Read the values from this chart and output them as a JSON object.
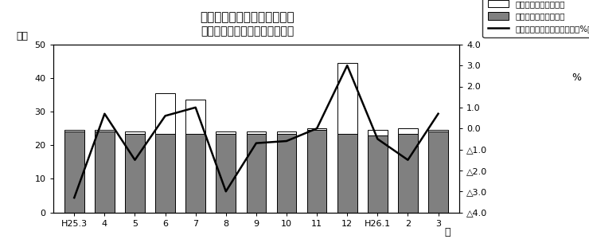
{
  "title_line1": "第１図　現金給与総額の推移",
  "title_line2": "（規模５人以上　調査産業計）",
  "xlabel": "月",
  "ylabel_left": "万円",
  "ylabel_right": "%",
  "categories": [
    "H25.3",
    "4",
    "5",
    "6",
    "7",
    "8",
    "9",
    "10",
    "11",
    "12",
    "H26.1",
    "2",
    "3"
  ],
  "regular_pay": [
    24.0,
    24.0,
    23.5,
    23.5,
    23.5,
    23.5,
    23.5,
    23.5,
    24.5,
    23.5,
    23.0,
    23.5,
    24.0
  ],
  "special_pay": [
    0.5,
    0.5,
    0.5,
    12.0,
    10.0,
    0.5,
    0.5,
    0.5,
    0.5,
    21.0,
    1.5,
    1.5,
    0.5
  ],
  "yoy_change": [
    -3.3,
    0.7,
    -1.5,
    0.6,
    1.0,
    -3.0,
    -0.7,
    -0.6,
    0.0,
    3.0,
    -0.5,
    -1.5,
    0.7
  ],
  "ylim_left": [
    0,
    50
  ],
  "ylim_right": [
    -4.0,
    4.0
  ],
  "yticks_left": [
    0,
    10,
    20,
    30,
    40,
    50
  ],
  "yticks_right_vals": [
    4.0,
    3.0,
    2.0,
    1.0,
    0.0,
    -1.0,
    -2.0,
    -3.0,
    -4.0
  ],
  "yticks_right_labels": [
    "4.0",
    "3.0",
    "2.0",
    "1.0",
    "0.0",
    "△1.0",
    "△2.0",
    "△3.0",
    "△4.0"
  ],
  "bar_color_regular": "#808080",
  "bar_color_special": "#ffffff",
  "bar_edge_color": "#000000",
  "line_color": "#000000",
  "background_color": "#ffffff",
  "legend_special": "特別に支払われた給与",
  "legend_regular": "きまって支給する給与",
  "legend_line": "現金給与総額対前年同月比（%）"
}
